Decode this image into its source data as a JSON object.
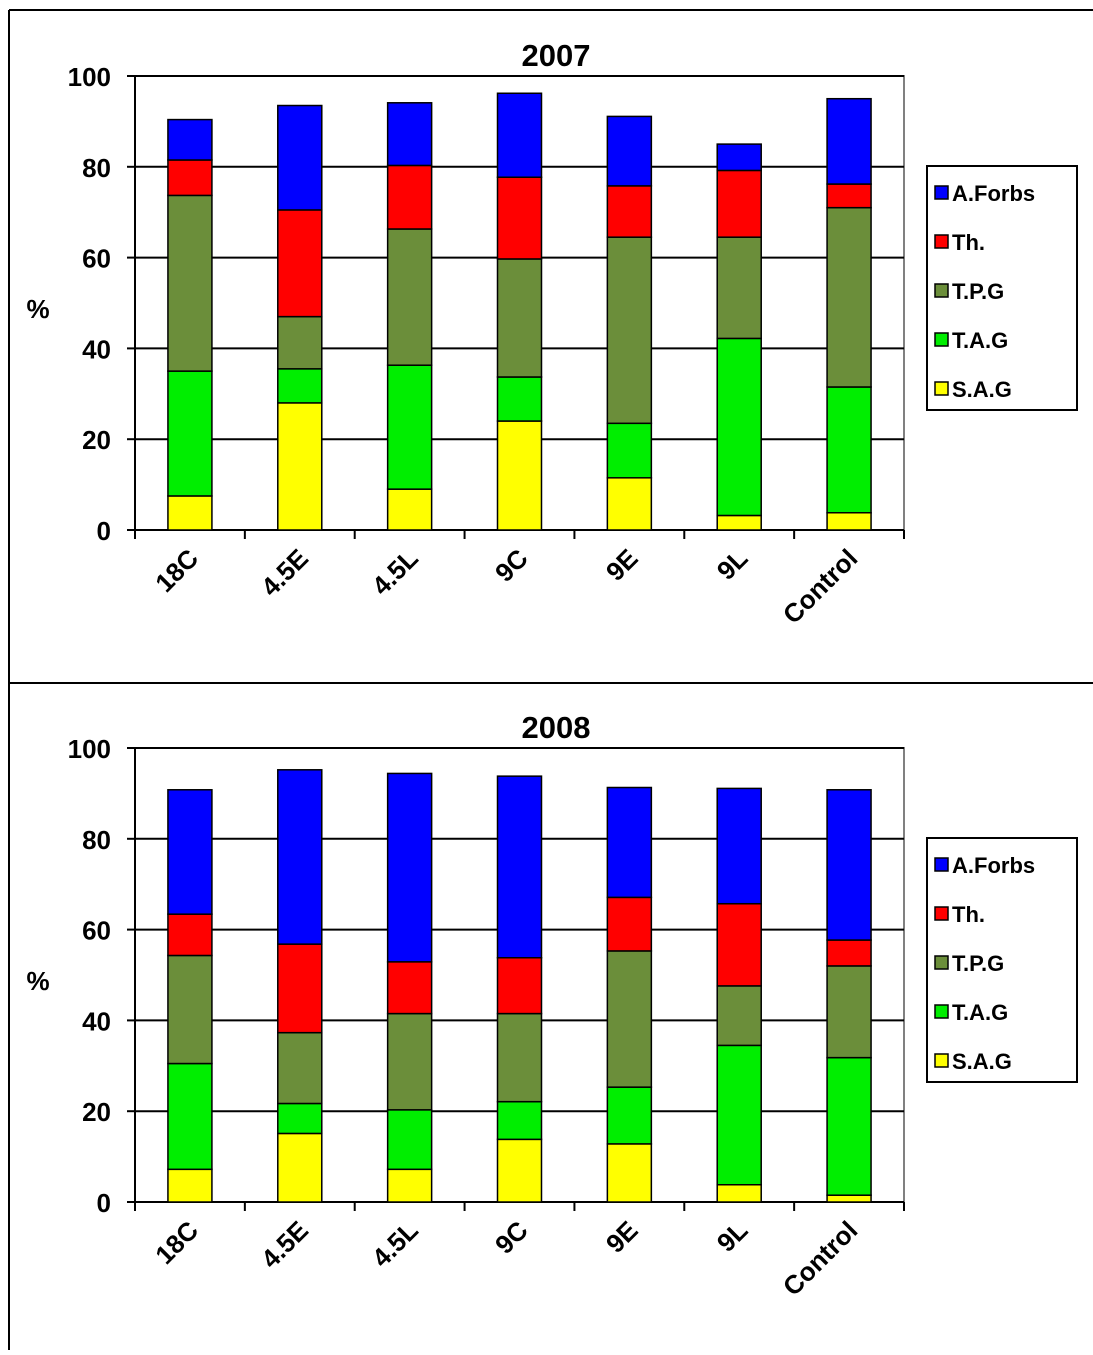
{
  "chart_data": [
    {
      "type": "bar",
      "stacked": true,
      "title": "2007",
      "xlabel": "",
      "ylabel": "%",
      "ylim": [
        0,
        100
      ],
      "yticks": [
        0,
        20,
        40,
        60,
        80,
        100
      ],
      "grid": true,
      "legend_position": "right",
      "categories": [
        "18C",
        "4.5E",
        "4.5L",
        "9C",
        "9E",
        "9L",
        "Control"
      ],
      "series": [
        {
          "name": "S.A.G",
          "color": "#FFFF00",
          "values": [
            7.5,
            28,
            9,
            24,
            11.5,
            3.2,
            3.8
          ]
        },
        {
          "name": "T.A.G",
          "color": "#00EE00",
          "values": [
            27.5,
            7.5,
            27.3,
            9.7,
            12,
            39,
            27.7
          ]
        },
        {
          "name": "T.P.G",
          "color": "#6B8E3A",
          "values": [
            38.7,
            11.5,
            30,
            26,
            41,
            22.3,
            39.5
          ]
        },
        {
          "name": "Th.",
          "color": "#FF0000",
          "values": [
            7.8,
            23.5,
            14,
            18,
            11.3,
            14.7,
            5.2
          ]
        },
        {
          "name": "A.Forbs",
          "color": "#0000FF",
          "values": [
            8.9,
            23,
            13.8,
            18.5,
            15.3,
            5.8,
            18.8
          ]
        }
      ]
    },
    {
      "type": "bar",
      "stacked": true,
      "title": "2008",
      "xlabel": "",
      "ylabel": "%",
      "ylim": [
        0,
        100
      ],
      "yticks": [
        0,
        20,
        40,
        60,
        80,
        100
      ],
      "grid": true,
      "legend_position": "right",
      "categories": [
        "18C",
        "4.5E",
        "4.5L",
        "9C",
        "9E",
        "9L",
        "Control"
      ],
      "series": [
        {
          "name": "S.A.G",
          "color": "#FFFF00",
          "values": [
            7.2,
            15.1,
            7.2,
            13.8,
            12.8,
            3.8,
            1.5
          ]
        },
        {
          "name": "T.A.G",
          "color": "#00EE00",
          "values": [
            23.3,
            6.6,
            13.1,
            8.3,
            12.5,
            30.7,
            30.3
          ]
        },
        {
          "name": "T.P.G",
          "color": "#6B8E3A",
          "values": [
            23.8,
            15.6,
            21.2,
            19.4,
            30,
            13.1,
            20.2
          ]
        },
        {
          "name": "Th.",
          "color": "#FF0000",
          "values": [
            9.1,
            19.5,
            11.4,
            12.3,
            11.8,
            18.1,
            5.7
          ]
        },
        {
          "name": "A.Forbs",
          "color": "#0000FF",
          "values": [
            27.4,
            38.4,
            41.5,
            40,
            24.2,
            25.4,
            33.1
          ]
        }
      ]
    }
  ]
}
